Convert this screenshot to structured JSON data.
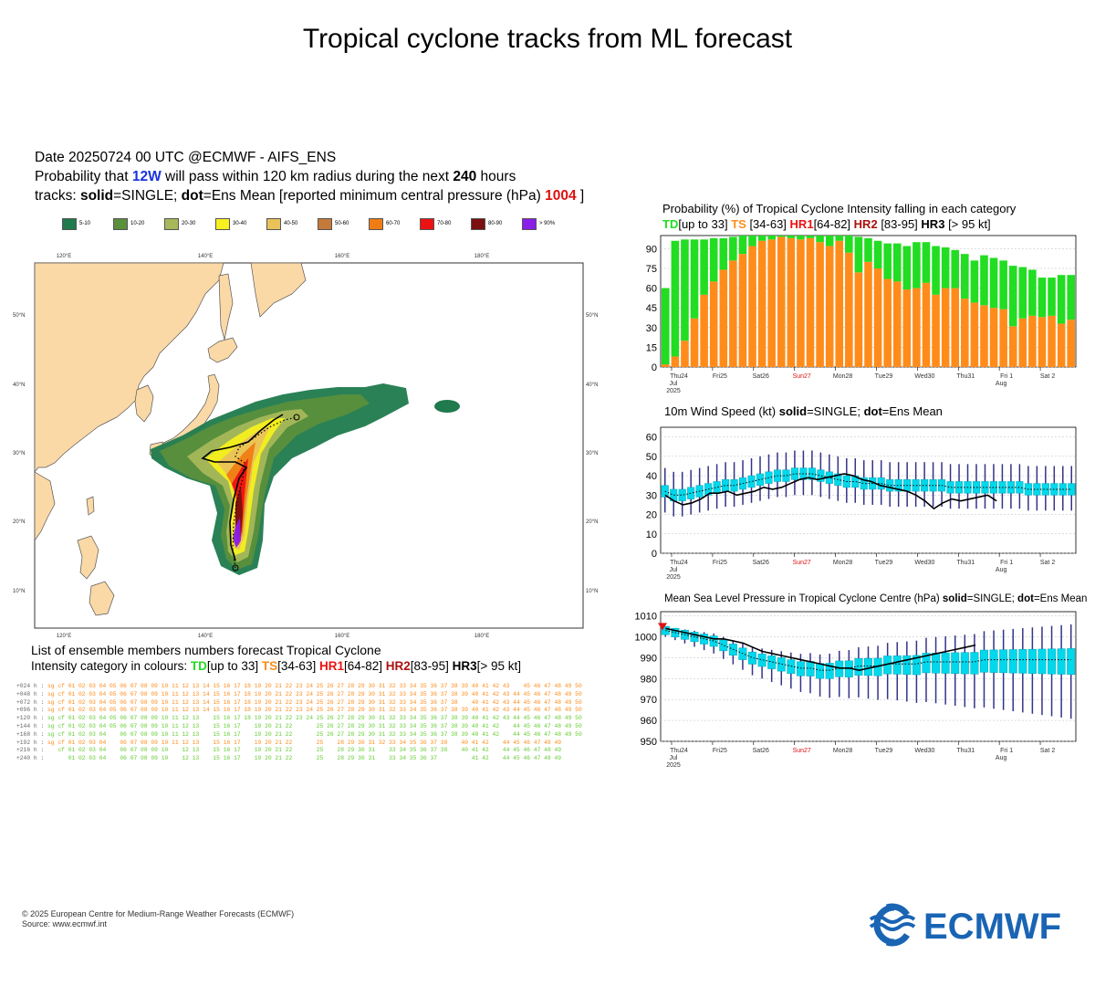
{
  "title": "Tropical cyclone tracks from ML forecast",
  "header": {
    "date_line": "Date 20250724 00 UTC   @ECMWF - AIFS_ENS",
    "prob_pre": "Probability that ",
    "storm": "12W",
    "prob_post": " will pass within 120 km radius during the next ",
    "hours": "240",
    "prob_end": " hours",
    "tracks_pre": "tracks: ",
    "solid": "solid",
    "tracks_mid": "=SINGLE; ",
    "dot": "dot",
    "tracks_post": "=Ens Mean [reported minimum central pressure (hPa) ",
    "pressure": "1004",
    "tracks_close": " ]"
  },
  "prob_legend": [
    {
      "label": "5-10",
      "color": "#1f7a4d"
    },
    {
      "label": "10-20",
      "color": "#5a8f3c"
    },
    {
      "label": "20-30",
      "color": "#a7b85a"
    },
    {
      "label": "30-40",
      "color": "#f5f01e"
    },
    {
      "label": "40-50",
      "color": "#e9c35a"
    },
    {
      "label": "50-60",
      "color": "#c47a3a"
    },
    {
      "label": "60-70",
      "color": "#f07d14"
    },
    {
      "label": "70-80",
      "color": "#ee1111"
    },
    {
      "label": "80-90",
      "color": "#7a1010"
    },
    {
      "label": "> 90%",
      "color": "#8a1ee8"
    }
  ],
  "map": {
    "lon_labels": [
      "120°E",
      "140°E",
      "160°E",
      "180°E"
    ],
    "lat_labels": [
      "50°N",
      "40°N",
      "30°N",
      "20°N",
      "10°N"
    ],
    "land_color": "#fad9a7",
    "sea_color": "#ffffff"
  },
  "ensemble": {
    "title": "List of ensemble members numbers forecast Tropical Cyclone",
    "intensity_pre": "Intensity category in colours: ",
    "td": "TD",
    "td_range": "[up to 33]",
    "ts": "TS",
    "ts_range": "[34-63]",
    "hr1": "HR1",
    "hr1_range": "[64-82]",
    "hr2": "HR2",
    "hr2_range": "[83-95]",
    "hr3": "HR3",
    "hr3_range": "[> 95 kt]",
    "rows": [
      {
        "label": "+024 h :",
        "text": "sg cf 01 02 03 04 05 06 07 08 09 10 11 12 13 14 15 16 17 18 19 20 21 22 23 24 25 26 27 28 29 30 31 32 33 34 35 36 37 38 39 40 41 42 43    45 46 47 48 49 50",
        "color": "#ff8c1a"
      },
      {
        "label": "+048 h :",
        "text": "sg cf 01 02 03 04 05 06 07 08 09 10 11 12 13 14 15 16 17 18 19 20 21 22 23 24 25 26 27 28 29 30 31 32 33 34 35 36 37 38 39 40 41 42 43 44 45 46 47 48 49 50",
        "color": "#ff8c1a"
      },
      {
        "label": "+072 h :",
        "text": "sg cf 01 02 03 04 05 06 07 08 09 10 11 12 13 14 15 16 17 18 19 20 21 22 23 24 25 26 27 28 29 30 31 32 33 34 35 36 37 38    40 41 42 43 44 45 46 47 48 49 50",
        "color": "#ff8c1a"
      },
      {
        "label": "+096 h :",
        "text": "sg cf 01 02 03 04 05 06 07 08 09 10 11 12 13 14 15 16 17 18 19 20 21 22 23 24 25 26 27 28 29 30 31 32 33 34 35 36 37 38 39 40 41 42 43 44 45 46 47 48 49 50",
        "color": "#ff8c1a"
      },
      {
        "label": "+120 h :",
        "text": "sg cf 01 02 03 04 05 06 07 08 09 10 11 12 13    15 16 17 18 19 20 21 22 23 24 25 26 27 28 29 30 31 32 33 34 35 36 37 38 39 40 41 42 43 44 45 46 47 48 49 50",
        "color": "#66cc33"
      },
      {
        "label": "+144 h :",
        "text": "sg cf 01 02 03 04 05 06 07 08 09 10 11 12 13    15 16 17    19 20 21 22       25 26 27 28 29 30 31 32 33 34 35 36 37 38 39 40 41 42    44 45 46 47 48 49 50",
        "color": "#66cc33"
      },
      {
        "label": "+168 h :",
        "text": "sg cf 01 02 03 04    06 07 08 09 10 11 12 13    15 16 17    19 20 21 22       25 26 27 28 29 30 31 32 33 34 35 36 37 38 39 40 41 42    44 45 46 47 48 49 50",
        "color": "#66cc33"
      },
      {
        "label": "+192 h :",
        "text": "sg cf 01 02 03 04    06 07 08 09 10 11 12 13    15 16 17    19 20 21 22       25    28 29 30 31 32 33 34 35 36 37 38    40 41 42    44 45 46 47 48 49",
        "color": "#ff8c1a"
      },
      {
        "label": "+216 h :",
        "text": "   cf 01 02 03 04    06 07 08 09 10    12 13    15 16 17    19 20 21 22       25    28 29 30 31    33 34 35 36 37 38    40 41 42    44 45 46 47 48 49",
        "color": "#66cc33"
      },
      {
        "label": "+240 h :",
        "text": "      01 02 03 04    06 07 08 09 10    12 13    15 16 17    19 20 21 22       25    28 29 30 31    33 34 35 36 37          41 42    44 45 46 47 48 49",
        "color": "#66cc33"
      }
    ]
  },
  "chart_data": [
    {
      "type": "bar",
      "title": "Probability (%) of Tropical Cyclone Intensity falling in each category",
      "legend": [
        {
          "name": "TD",
          "range": "[up to 33]",
          "color": "#22dd22"
        },
        {
          "name": "TS",
          "range": "[34-63]",
          "color": "#ff8c1a"
        },
        {
          "name": "HR1",
          "range": "[64-82]",
          "color": "#ee1111"
        },
        {
          "name": "HR2",
          "range": "[83-95]",
          "color": "#aa1111"
        },
        {
          "name": "HR3",
          "range": "[> 95 kt]",
          "color": "#000000"
        }
      ],
      "ylim": [
        0,
        100
      ],
      "yticks": [
        0,
        15,
        30,
        45,
        60,
        75,
        90
      ],
      "xticks": [
        {
          "line1": "Thu24",
          "line2": "Jul",
          "line3": "2025"
        },
        {
          "line1": "Fri25"
        },
        {
          "line1": "Sat26"
        },
        {
          "line1": "Sun27",
          "red": true
        },
        {
          "line1": "Mon28"
        },
        {
          "line1": "Tue29"
        },
        {
          "line1": "Wed30"
        },
        {
          "line1": "Thu31"
        },
        {
          "line1": "Fri 1",
          "line2": "Aug"
        },
        {
          "line1": "Sat 2"
        }
      ],
      "series": [
        {
          "name": "TS",
          "color": "#ff8c1a",
          "values": [
            2,
            8,
            20,
            37,
            55,
            65,
            74,
            81,
            86,
            92,
            96,
            97,
            99,
            98,
            97,
            98,
            95,
            92,
            96,
            87,
            72,
            80,
            75,
            67,
            65,
            59,
            60,
            64,
            55,
            60,
            60,
            52,
            49,
            47,
            45,
            44,
            31,
            37,
            39,
            38,
            39,
            33,
            36
          ]
        },
        {
          "name": "TD",
          "color": "#22dd22",
          "values": [
            58,
            88,
            77,
            60,
            42,
            33,
            24,
            18,
            14,
            8,
            4,
            3,
            1,
            2,
            3,
            2,
            5,
            8,
            4,
            13,
            27,
            18,
            21,
            27,
            29,
            33,
            35,
            31,
            37,
            31,
            29,
            34,
            32,
            38,
            38,
            37,
            46,
            39,
            35,
            30,
            29,
            37,
            34
          ]
        }
      ]
    },
    {
      "type": "line",
      "title": "10m Wind Speed (kt) solid=SINGLE; dot=Ens Mean",
      "ylim": [
        0,
        65
      ],
      "yticks": [
        0,
        10,
        20,
        30,
        40,
        50,
        60
      ],
      "series": [
        {
          "name": "SINGLE",
          "color": "#000000",
          "values": [
            30,
            27,
            25,
            26,
            28,
            31,
            31,
            32,
            30,
            31,
            32,
            34,
            33,
            34,
            36,
            38,
            39,
            38,
            39,
            40,
            41,
            40,
            38,
            37,
            35,
            34,
            33,
            32,
            30,
            27,
            23,
            26,
            28,
            27,
            28,
            29,
            30,
            27
          ]
        },
        {
          "name": "Ens Mean",
          "color": "#00d8ec",
          "values": [
            32,
            30,
            30,
            31,
            32,
            33,
            34,
            35,
            35,
            36,
            37,
            38,
            39,
            40,
            40,
            41,
            41,
            41,
            40,
            39,
            38,
            37,
            37,
            36,
            36,
            36,
            35,
            35,
            35,
            35,
            35,
            35,
            35,
            34,
            34,
            34,
            34,
            34,
            34,
            34,
            34,
            34,
            33,
            33,
            33,
            33,
            33,
            33
          ]
        }
      ]
    },
    {
      "type": "line",
      "title": "Mean Sea Level Pressure in Tropical Cyclone Centre (hPa) solid=SINGLE; dot=Ens Mean",
      "ylim": [
        950,
        1012
      ],
      "yticks": [
        950,
        960,
        970,
        980,
        990,
        1000,
        1010
      ],
      "series": [
        {
          "name": "SINGLE",
          "color": "#000000",
          "values": [
            1004,
            1003,
            1002,
            1001,
            1000,
            999,
            999,
            998,
            997,
            995,
            993,
            992,
            991,
            990,
            989,
            988,
            987,
            986,
            985,
            985,
            984,
            985,
            986,
            987,
            988,
            989,
            990,
            991,
            992,
            993,
            994,
            995,
            996
          ]
        },
        {
          "name": "Ens Mean",
          "color": "#00d8ec",
          "values": [
            1003,
            1002,
            1001,
            1000,
            999,
            998,
            996,
            994,
            992,
            990,
            989,
            988,
            987,
            986,
            985,
            985,
            984,
            984,
            985,
            985,
            986,
            986,
            986,
            987,
            987,
            987,
            987,
            988,
            988,
            988,
            988,
            988,
            988,
            989,
            989,
            989,
            989,
            989,
            989,
            989,
            989,
            989,
            989
          ]
        }
      ]
    }
  ],
  "footer": {
    "copyright": "© 2025 European Centre for Medium-Range Weather Forecasts (ECMWF)",
    "source": "Source: www.ecmwf.int",
    "logo_text": "ECMWF",
    "logo_color": "#1a64b4"
  }
}
